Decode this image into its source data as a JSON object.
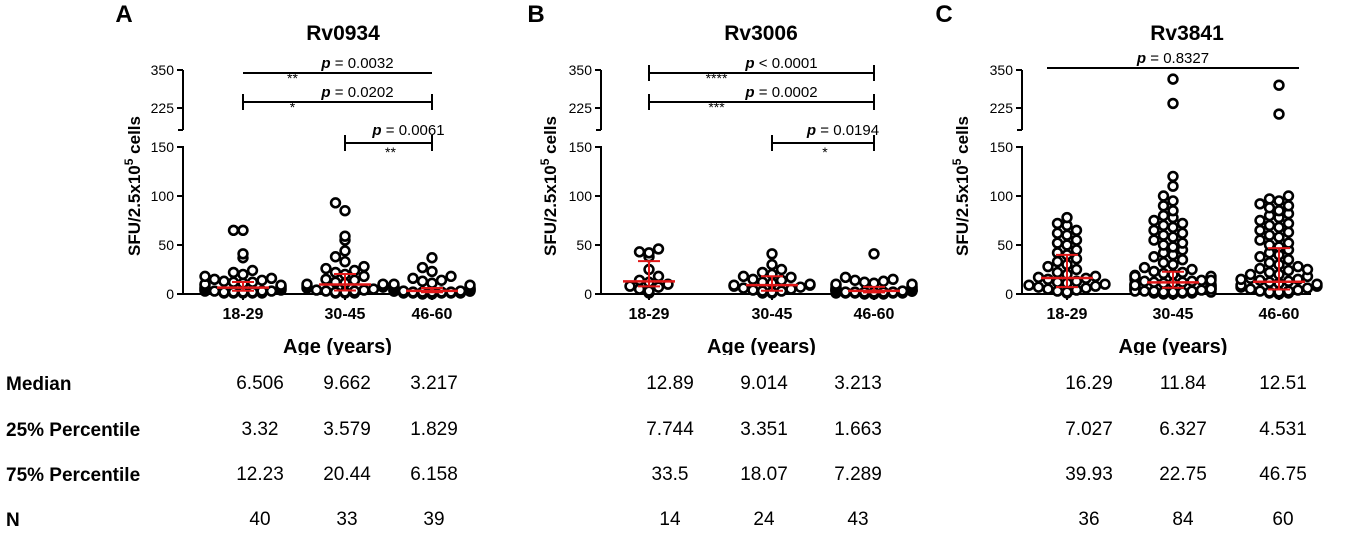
{
  "colors": {
    "axis": "#000000",
    "point": "#000000",
    "summary": "#e01818",
    "background": "#ffffff"
  },
  "chart_data": [
    {
      "type": "scatter",
      "panel": "A",
      "title": "Rv0934",
      "xlabel": "Age (years)",
      "ylabel_parts": [
        "SFU/2.5x10",
        "5",
        " cells"
      ],
      "categories": [
        "18-29",
        "30-45",
        "46-60"
      ],
      "y_ticks_lower": [
        "0",
        "50",
        "100",
        "150"
      ],
      "y_ticks_upper": [
        "225",
        "350"
      ],
      "ylim_lower": [
        0,
        150
      ],
      "ylim_upper": [
        150,
        350
      ],
      "axis_break": true,
      "medians": [
        6.506,
        9.662,
        3.217
      ],
      "p25": [
        3.32,
        3.579,
        1.829
      ],
      "p75": [
        12.23,
        20.44,
        6.158
      ],
      "n": [
        40,
        33,
        39
      ],
      "points": [
        [
          1,
          1,
          1,
          1,
          1,
          2,
          2,
          2,
          2,
          3,
          3,
          3,
          3,
          4,
          4,
          5,
          5,
          6,
          6,
          7,
          7,
          8,
          9,
          9,
          10,
          11,
          12,
          12,
          13,
          14,
          15,
          16,
          18,
          20,
          22,
          24,
          37,
          41,
          65,
          65
        ],
        [
          1,
          1,
          1,
          2,
          2,
          3,
          3,
          4,
          4,
          5,
          6,
          7,
          8,
          9,
          10,
          10,
          11,
          12,
          14,
          15,
          18,
          20,
          22,
          24,
          26,
          28,
          33,
          38,
          44,
          55,
          59,
          85,
          93
        ],
        [
          0,
          0,
          1,
          1,
          1,
          1,
          1,
          2,
          2,
          2,
          2,
          2,
          3,
          3,
          3,
          3,
          3,
          3,
          4,
          4,
          4,
          5,
          5,
          5,
          6,
          6,
          7,
          7,
          8,
          9,
          10,
          11,
          13,
          14,
          16,
          18,
          23,
          27,
          37
        ]
      ],
      "comparisons": [
        {
          "from": 0,
          "to": 2,
          "stars": "**",
          "p_prefix": "p",
          "p_text": " = 0.0032"
        },
        {
          "from": 0,
          "to": 2,
          "stars": "*",
          "p_prefix": "p",
          "p_text": " = 0.0202"
        },
        {
          "from": 1,
          "to": 2,
          "stars": "**",
          "p_prefix": "p",
          "p_text": " = 0.0061"
        }
      ]
    },
    {
      "type": "scatter",
      "panel": "B",
      "title": "Rv3006",
      "xlabel": "Age (years)",
      "ylabel_parts": [
        "SFU/2.5x10",
        "5",
        " cells"
      ],
      "categories": [
        "18-29",
        "30-45",
        "46-60"
      ],
      "y_ticks_lower": [
        "0",
        "50",
        "100",
        "150"
      ],
      "y_ticks_upper": [
        "225",
        "350"
      ],
      "ylim_lower": [
        0,
        150
      ],
      "ylim_upper": [
        150,
        350
      ],
      "axis_break": true,
      "medians": [
        12.89,
        9.014,
        3.213
      ],
      "p25": [
        7.744,
        3.351,
        1.663
      ],
      "p75": [
        33.5,
        18.07,
        7.289
      ],
      "n": [
        14,
        24,
        43
      ],
      "points": [
        [
          1,
          3,
          5,
          7,
          8,
          10,
          12,
          14,
          18,
          25,
          38,
          42,
          43,
          46
        ],
        [
          1,
          1,
          2,
          3,
          3,
          4,
          5,
          6,
          7,
          8,
          9,
          9,
          10,
          11,
          12,
          14,
          15,
          17,
          18,
          20,
          22,
          25,
          30,
          41
        ],
        [
          0,
          0,
          0,
          1,
          1,
          1,
          1,
          1,
          2,
          2,
          2,
          2,
          2,
          2,
          3,
          3,
          3,
          3,
          3,
          3,
          3,
          4,
          4,
          4,
          4,
          5,
          5,
          5,
          6,
          6,
          7,
          7,
          8,
          9,
          10,
          10,
          11,
          12,
          13,
          14,
          15,
          17,
          41
        ]
      ],
      "comparisons": [
        {
          "from": 0,
          "to": 2,
          "stars": "****",
          "p_prefix": "p",
          "p_text": " < 0.0001"
        },
        {
          "from": 0,
          "to": 2,
          "stars": "***",
          "p_prefix": "p",
          "p_text": " = 0.0002"
        },
        {
          "from": 1,
          "to": 2,
          "stars": "*",
          "p_prefix": "p",
          "p_text": " = 0.0194"
        }
      ]
    },
    {
      "type": "scatter",
      "panel": "C",
      "title": "Rv3841",
      "xlabel": "Age (years)",
      "ylabel_parts": [
        "SFU/2.5x10",
        "5",
        " cells"
      ],
      "categories": [
        "18-29",
        "30-45",
        "46-60"
      ],
      "y_ticks_lower": [
        "0",
        "50",
        "100",
        "150"
      ],
      "y_ticks_upper": [
        "225",
        "350"
      ],
      "ylim_lower": [
        0,
        150
      ],
      "ylim_upper": [
        150,
        350
      ],
      "axis_break": true,
      "medians": [
        16.29,
        11.84,
        12.51
      ],
      "p25": [
        7.027,
        6.327,
        4.531
      ],
      "p75": [
        39.93,
        22.75,
        46.75
      ],
      "n": [
        36,
        84,
        60
      ],
      "points": [
        [
          1,
          2,
          3,
          4,
          5,
          6,
          7,
          8,
          9,
          10,
          11,
          12,
          13,
          15,
          16,
          17,
          18,
          20,
          22,
          25,
          28,
          30,
          33,
          36,
          40,
          42,
          45,
          50,
          52,
          55,
          60,
          62,
          65,
          70,
          72,
          78
        ],
        [
          0,
          0,
          1,
          1,
          1,
          2,
          2,
          2,
          3,
          3,
          3,
          4,
          4,
          4,
          5,
          5,
          5,
          6,
          6,
          6,
          7,
          7,
          7,
          8,
          8,
          8,
          9,
          9,
          10,
          10,
          10,
          11,
          11,
          12,
          12,
          13,
          13,
          14,
          15,
          16,
          17,
          18,
          19,
          20,
          21,
          22,
          23,
          25,
          27,
          30,
          32,
          35,
          38,
          40,
          42,
          45,
          48,
          50,
          52,
          55,
          58,
          60,
          62,
          65,
          68,
          70,
          72,
          75,
          78,
          80,
          85,
          90,
          95,
          100,
          110,
          120,
          240,
          320,
          2,
          3,
          5,
          9,
          14,
          18
        ],
        [
          0,
          1,
          1,
          2,
          2,
          3,
          3,
          4,
          5,
          6,
          7,
          8,
          9,
          10,
          11,
          12,
          13,
          14,
          15,
          16,
          18,
          20,
          22,
          24,
          26,
          28,
          30,
          32,
          35,
          38,
          40,
          42,
          45,
          48,
          50,
          52,
          55,
          58,
          60,
          63,
          65,
          68,
          70,
          72,
          75,
          78,
          80,
          82,
          85,
          88,
          90,
          92,
          95,
          97,
          100,
          15,
          20,
          25,
          205,
          300
        ]
      ],
      "comparisons": [
        {
          "from": 0,
          "to": 2,
          "stars": "",
          "p_prefix": "p",
          "p_text": " = 0.8327"
        }
      ]
    }
  ],
  "table": {
    "rows": [
      {
        "label": "Median",
        "values": [
          "6.506",
          "9.662",
          "3.217",
          "12.89",
          "9.014",
          "3.213",
          "16.29",
          "11.84",
          "12.51"
        ]
      },
      {
        "label": "25%  Percentile",
        "values": [
          "3.32",
          "3.579",
          "1.829",
          "7.744",
          "3.351",
          "1.663",
          "7.027",
          "6.327",
          "4.531"
        ]
      },
      {
        "label": "75%  Percentile",
        "values": [
          "12.23",
          "20.44",
          "6.158",
          "33.5",
          "18.07",
          "7.289",
          "39.93",
          "22.75",
          "46.75"
        ]
      },
      {
        "label": "N",
        "values": [
          "40",
          "33",
          "39",
          "14",
          "24",
          "43",
          "36",
          "84",
          "60"
        ]
      }
    ]
  }
}
